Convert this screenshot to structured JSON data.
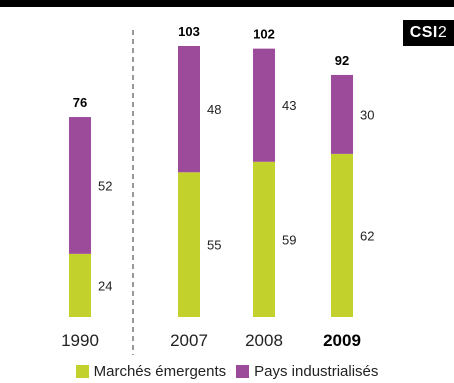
{
  "badge": {
    "part1": "CSI",
    "part2": "2"
  },
  "colors": {
    "emerging": "#c3d12c",
    "industrialized": "#9c4b9b",
    "text": "#222222",
    "divider": "#555555"
  },
  "chart_data": {
    "type": "bar",
    "stacked": true,
    "categories": [
      "1990",
      "2007",
      "2008",
      "2009"
    ],
    "highlight_category": "2009",
    "series": [
      {
        "name": "Marchés émergents",
        "values": [
          24,
          55,
          59,
          62
        ]
      },
      {
        "name": "Pays industrialisés",
        "values": [
          52,
          48,
          43,
          30
        ]
      }
    ],
    "totals": [
      76,
      103,
      102,
      92
    ],
    "ylim": [
      0,
      103
    ],
    "legend_position": "bottom",
    "grid": false
  }
}
